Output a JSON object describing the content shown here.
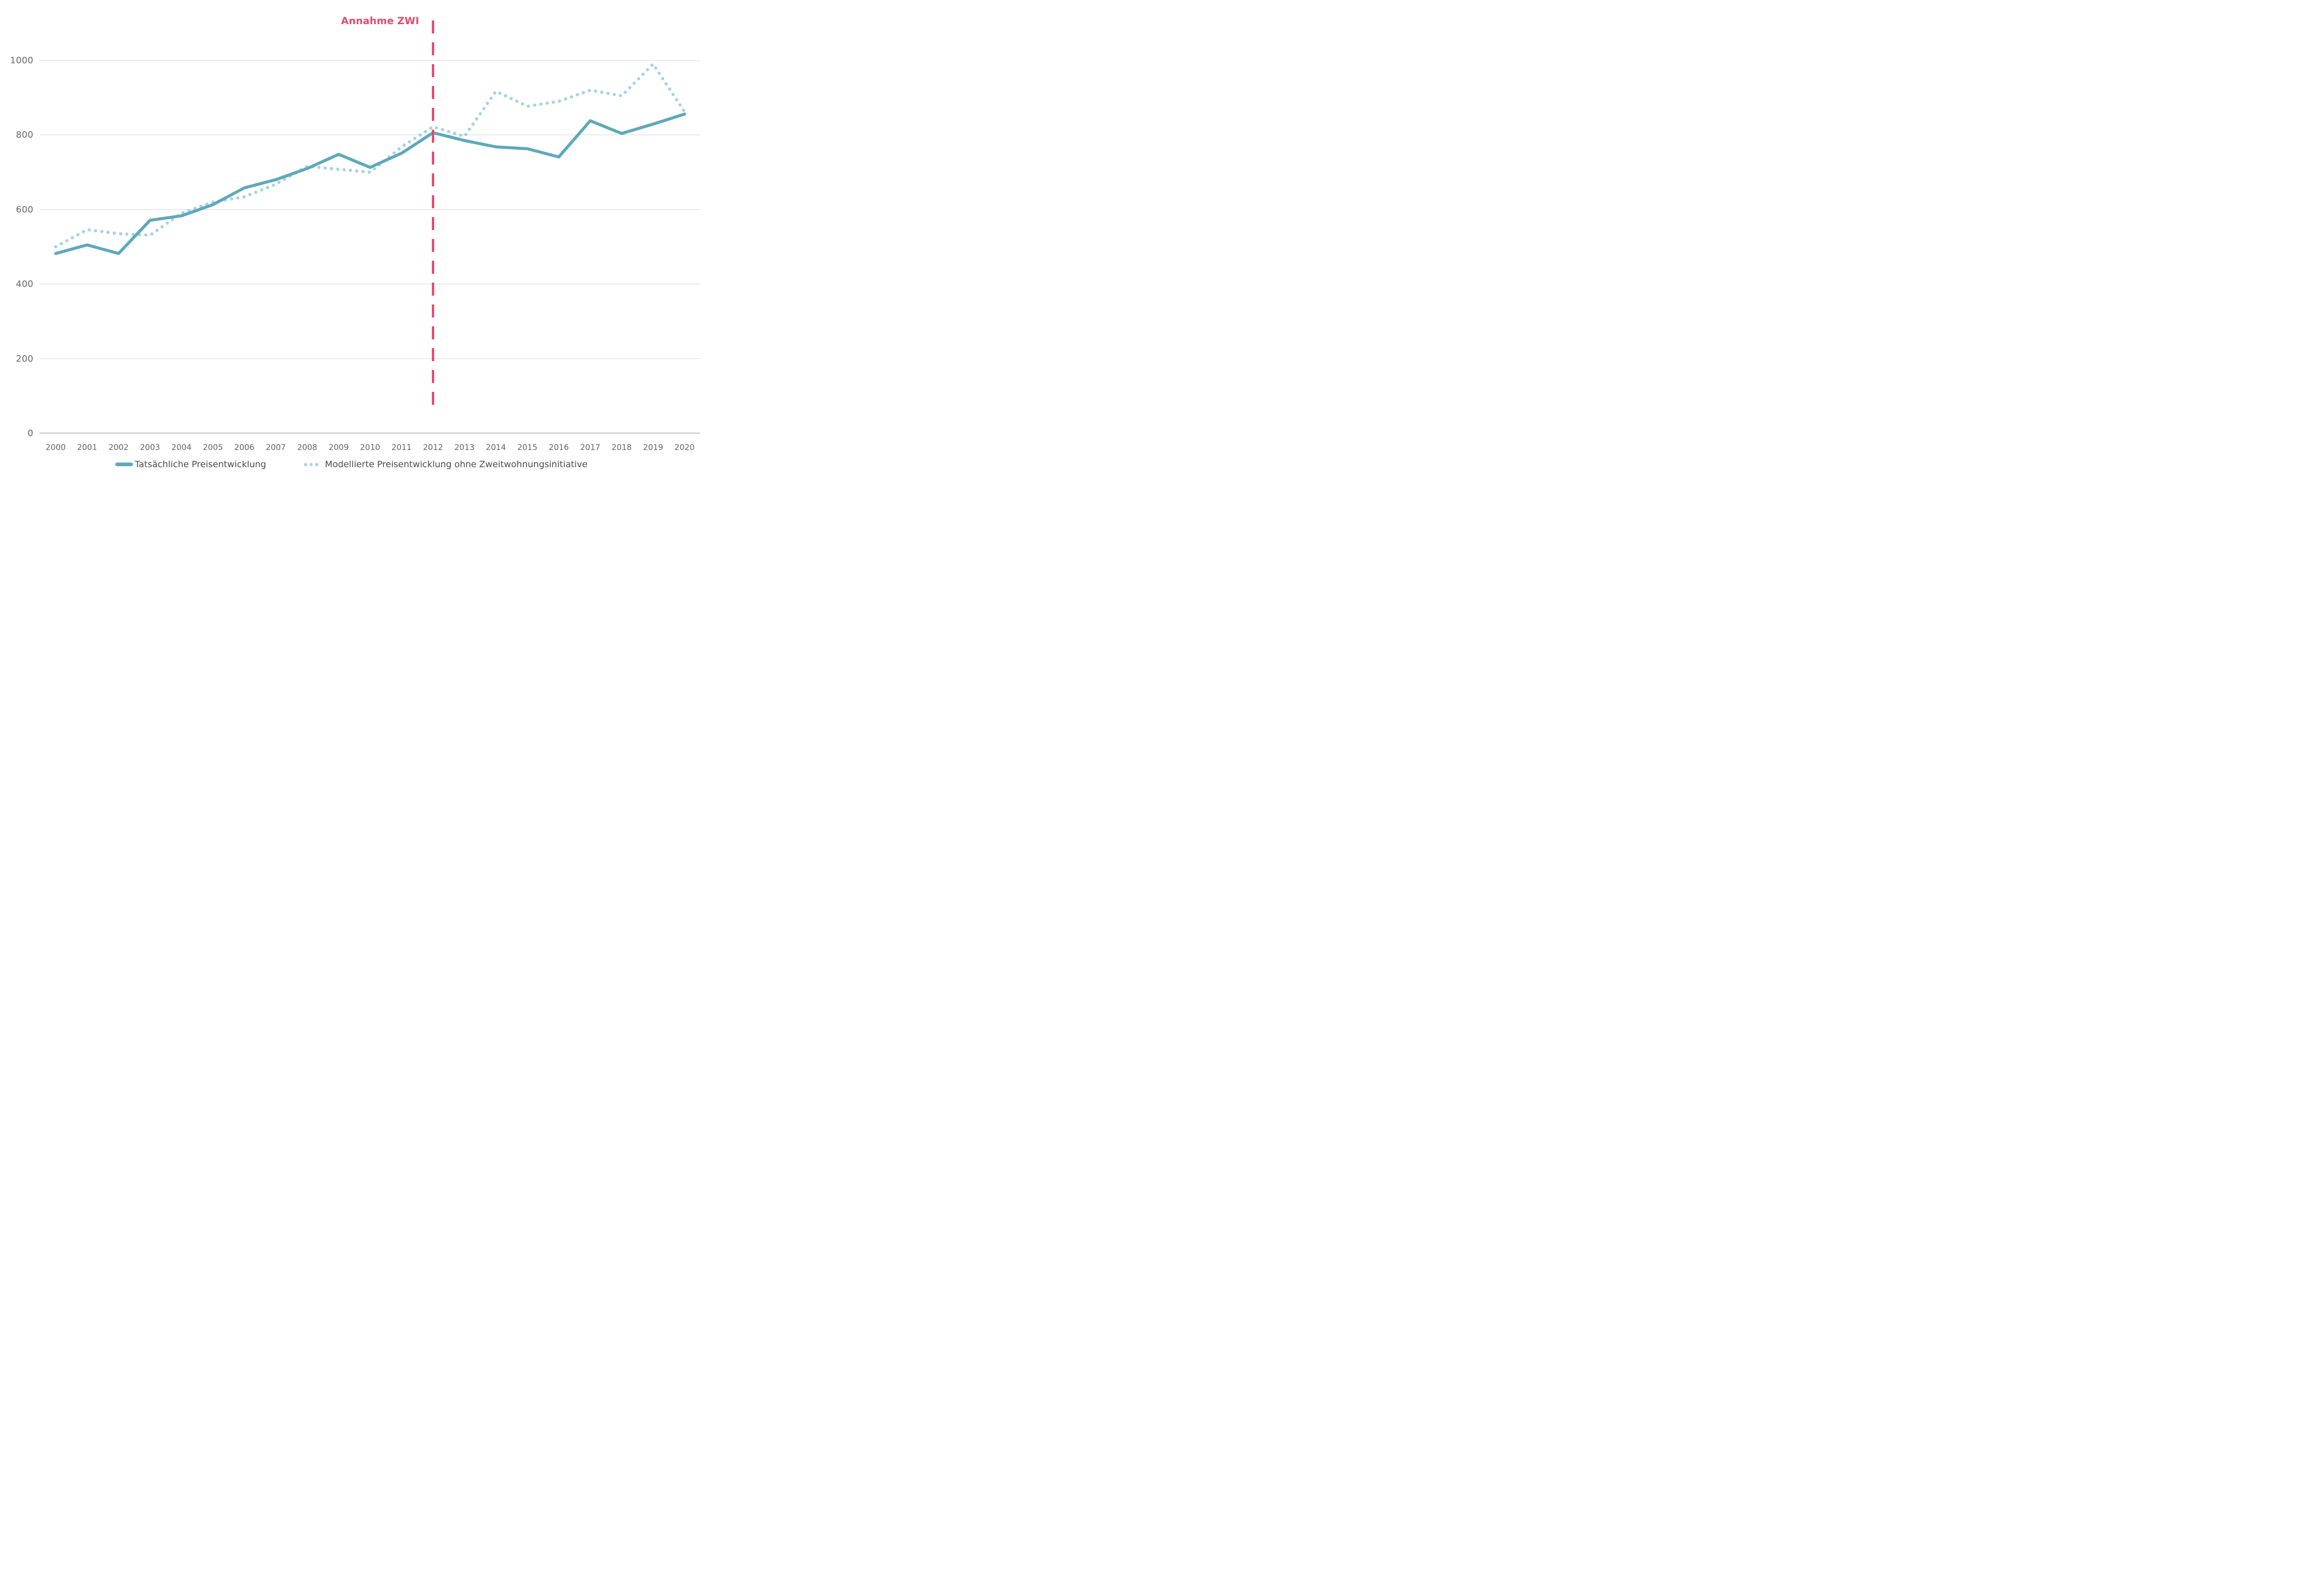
{
  "chart_data": {
    "type": "line",
    "title": "",
    "annotation": {
      "label": "Annahme ZWI",
      "x": 2012,
      "color": "#E8486C"
    },
    "x": [
      2000,
      2001,
      2002,
      2003,
      2004,
      2005,
      2006,
      2007,
      2008,
      2009,
      2010,
      2011,
      2012,
      2013,
      2014,
      2015,
      2016,
      2017,
      2018,
      2019,
      2020
    ],
    "series": [
      {
        "name": "Tatsächliche Preisentwicklung",
        "style": "solid",
        "color": "#5FA8BB",
        "values": [
          482,
          505,
          482,
          571,
          583,
          613,
          658,
          680,
          710,
          748,
          713,
          751,
          806,
          785,
          768,
          763,
          741,
          838,
          804,
          829,
          856
        ]
      },
      {
        "name": "Modellierte Preisentwicklung ohne Zweitwohnungsinitiative",
        "style": "dotted",
        "color": "#A6D3E3",
        "values": [
          500,
          546,
          535,
          531,
          590,
          620,
          634,
          668,
          716,
          708,
          700,
          768,
          822,
          796,
          917,
          877,
          890,
          920,
          905,
          990,
          862
        ]
      }
    ],
    "yticks": [
      0,
      200,
      400,
      600,
      800,
      1000
    ],
    "ylim": [
      0,
      1100
    ],
    "xlabel": "",
    "ylabel": "",
    "grid": "horizontal",
    "legend_position": "bottom",
    "colors": {
      "gridline": "#E0E0E0",
      "axis_line": "#C9C9C9",
      "tick_text": "#636363",
      "legend_text": "#4A4A4A",
      "background": "#FFFFFF"
    }
  }
}
